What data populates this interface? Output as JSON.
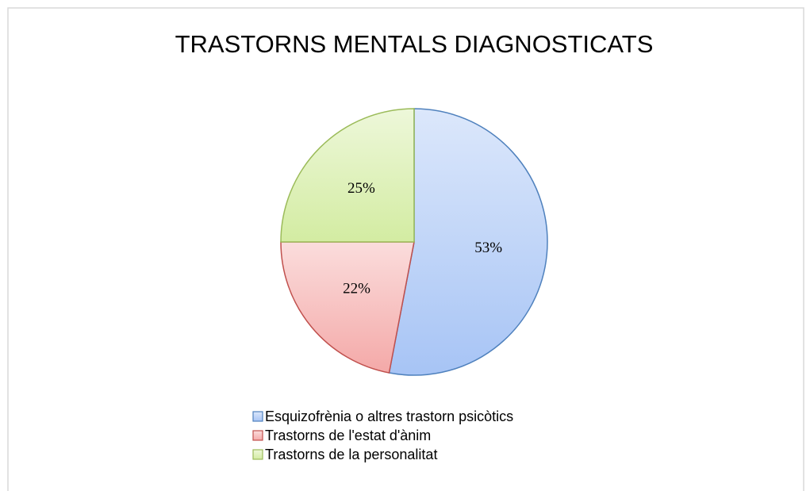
{
  "chart_data": {
    "type": "pie",
    "title": "TRASTORNS MENTALS DIAGNOSTICATS",
    "categories": [
      "Esquizofrènia o altres trastorn psicòtics",
      "Trastorns de l'estat d'ànim",
      "Trastorns de la personalitat"
    ],
    "values": [
      53,
      22,
      25
    ],
    "value_labels": [
      "53%",
      "22%",
      "25%"
    ],
    "colors": [
      "#a7c4f5",
      "#f4a9a8",
      "#d3eca2"
    ],
    "edge_colors": [
      "#4f81bd",
      "#c0504d",
      "#9bbb59"
    ],
    "legend": "bottom"
  }
}
